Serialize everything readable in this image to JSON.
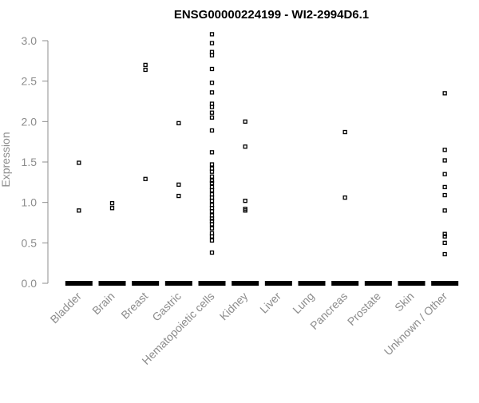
{
  "chart_data": {
    "type": "scatter",
    "title": "ENSG00000224199 - WI2-2994D6.1",
    "xlabel": "",
    "ylabel": "Expression",
    "ylim": [
      0,
      3.1
    ],
    "yticks": [
      "0.0",
      "0.5",
      "1.0",
      "1.5",
      "2.0",
      "2.5",
      "3.0"
    ],
    "categories": [
      "Bladder",
      "Brain",
      "Breast",
      "Gastric",
      "Hematopoietic cells",
      "Kidney",
      "Liver",
      "Lung",
      "Pancreas",
      "Prostate",
      "Skin",
      "Unknown / Other"
    ],
    "series": [
      {
        "category": "Bladder",
        "values": [
          1.49,
          0.9
        ]
      },
      {
        "category": "Brain",
        "values": [
          0.99,
          0.93
        ]
      },
      {
        "category": "Breast",
        "values": [
          2.7,
          2.64,
          1.29
        ]
      },
      {
        "category": "Gastric",
        "values": [
          1.98,
          1.22,
          1.08
        ]
      },
      {
        "category": "Hematopoietic cells",
        "values": [
          3.08,
          2.97,
          2.86,
          2.82,
          2.65,
          2.48,
          2.36,
          2.22,
          2.18,
          2.11,
          2.05,
          1.89,
          1.62,
          1.47,
          1.42,
          1.38,
          1.32,
          1.27,
          1.24,
          1.19,
          1.15,
          1.1,
          1.06,
          1.02,
          0.97,
          0.93,
          0.89,
          0.84,
          0.8,
          0.77,
          0.73,
          0.68,
          0.62,
          0.58,
          0.53,
          0.38
        ]
      },
      {
        "category": "Kidney",
        "values": [
          2.0,
          1.69,
          1.02,
          0.92,
          0.9
        ]
      },
      {
        "category": "Liver",
        "values": []
      },
      {
        "category": "Lung",
        "values": []
      },
      {
        "category": "Pancreas",
        "values": [
          1.87,
          1.06
        ]
      },
      {
        "category": "Prostate",
        "values": []
      },
      {
        "category": "Skin",
        "values": []
      },
      {
        "category": "Unknown / Other",
        "values": [
          2.35,
          1.65,
          1.52,
          1.35,
          1.19,
          1.09,
          0.9,
          0.61,
          0.58,
          0.5,
          0.36
        ]
      }
    ],
    "zero_band": "dense cluster of points at 0.0 for every category",
    "grid": false,
    "legend": "none"
  }
}
